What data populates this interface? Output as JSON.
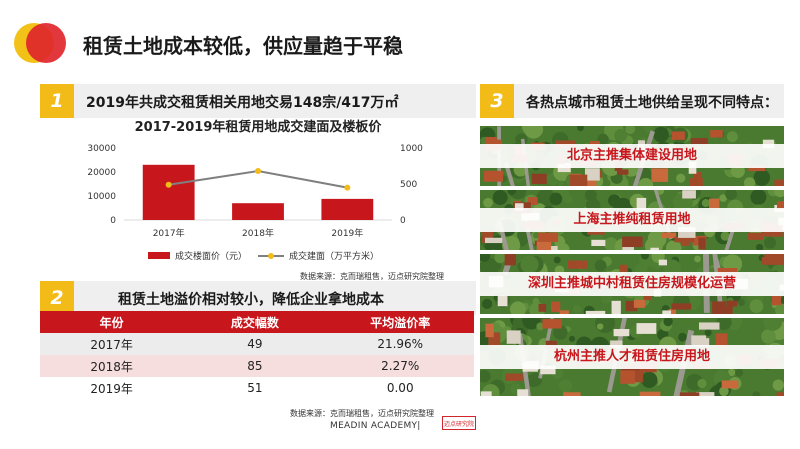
{
  "page": {
    "title": "租赁土地成本较低，供应量趋于平稳"
  },
  "section1": {
    "number": "1",
    "heading": "2019年共成交租赁相关用地交易148宗/417万㎡"
  },
  "section2": {
    "number": "2",
    "heading": "租赁土地溢价相对较小，降低企业拿地成本"
  },
  "section3": {
    "number": "3",
    "heading": "各热点城市租赁土地供给呈现不同特点：",
    "items": [
      {
        "label": "北京主推集体建设用地"
      },
      {
        "label": "上海主推纯租赁用地"
      },
      {
        "label": "深圳主推城中村租赁住房规模化运营"
      },
      {
        "label": "杭州主推人才租赁住房用地"
      }
    ]
  },
  "chart_data": {
    "type": "bar",
    "title": "2017-2019年租赁用地成交建面及楼板价",
    "categories": [
      "2017年",
      "2018年",
      "2019年"
    ],
    "series": [
      {
        "name": "成交楼面价（元）",
        "type": "bar",
        "axis": "left",
        "color": "#c8161d",
        "values": [
          23000,
          7000,
          8800
        ]
      },
      {
        "name": "成交建面（万平方米）",
        "type": "line",
        "axis": "right",
        "color": "#7f7f7f",
        "marker_color": "#f2bb17",
        "values": [
          490,
          680,
          450
        ]
      }
    ],
    "y_left": {
      "ticks": [
        0,
        10000,
        20000,
        30000
      ],
      "ylim": [
        0,
        30000
      ]
    },
    "y_right": {
      "ticks": [
        0,
        500,
        1000
      ],
      "ylim": [
        0,
        1000
      ]
    },
    "legend_position": "bottom",
    "source": "数据来源：克而瑞租售，迈点研究院整理"
  },
  "table": {
    "headers": [
      "年份",
      "成交幅数",
      "平均溢价率"
    ],
    "rows": [
      [
        "2017年",
        "49",
        "21.96%"
      ],
      [
        "2018年",
        "85",
        "2.27%"
      ],
      [
        "2019年",
        "51",
        "0.00"
      ]
    ],
    "source": "数据来源：克而瑞租售，迈点研究院整理"
  },
  "footer": {
    "academy": "MEADIN ACADEMY|",
    "logo_text": "迈点研究院"
  },
  "colors": {
    "accent_red": "#c8161d",
    "accent_yellow": "#f2bb17"
  }
}
